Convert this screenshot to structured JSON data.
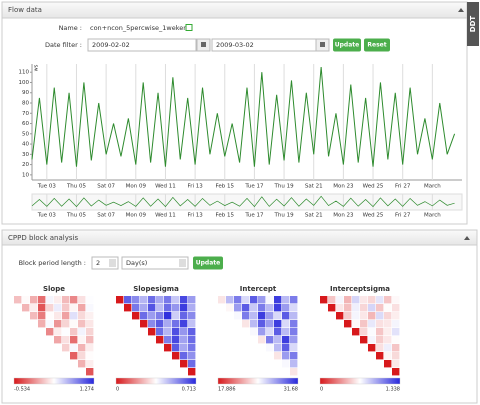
{
  "flow_panel": {
    "title": "Flow data",
    "name_label": "Name :",
    "name_value": "con+ncon_5percwise_1weken",
    "date_label": "Date filter :",
    "date_from": "2009-02-02",
    "date_to": "2009-03-02",
    "update": "Update",
    "reset": "Reset"
  },
  "side_tab": "DDT",
  "cppd_panel": {
    "title": "CPPD block analysis",
    "period_label": "Block period length :",
    "period_value": "2",
    "period_unit": "Day(s)",
    "update": "Update"
  },
  "chart_data": [
    {
      "type": "line",
      "y_label": "ws",
      "color": "#2e8b2e",
      "grid": true,
      "x": [
        2,
        2.5,
        3,
        3.5,
        4,
        4.5,
        5,
        5.5,
        6,
        6.5,
        7,
        7.5,
        8,
        8.5,
        9,
        9.5,
        10,
        10.5,
        11,
        11.5,
        12,
        12.5,
        13,
        13.5,
        14,
        14.5,
        15,
        15.5,
        16,
        16.5,
        17,
        17.5,
        18,
        18.5,
        19,
        19.5,
        20,
        20.5,
        21,
        21.5,
        22,
        22.5,
        23,
        23.5,
        24,
        24.5,
        25,
        25.5,
        26,
        26.5,
        27,
        27.5,
        28,
        28.5,
        29,
        29.5,
        30,
        30.5
      ],
      "series": [
        {
          "values": [
            25,
            85,
            20,
            95,
            22,
            90,
            18,
            100,
            24,
            80,
            30,
            60,
            28,
            65,
            20,
            100,
            22,
            90,
            18,
            105,
            25,
            85,
            20,
            95,
            30,
            70,
            28,
            60,
            22,
            95,
            18,
            110,
            20,
            88,
            24,
            102,
            22,
            90,
            30,
            115,
            28,
            70,
            20,
            98,
            22,
            85,
            18,
            100,
            25,
            90,
            20,
            95,
            30,
            65,
            25,
            80,
            30,
            50
          ]
        }
      ],
      "xlim": [
        2,
        31
      ],
      "ylim": [
        5,
        118
      ],
      "yticks": [
        10,
        20,
        30,
        40,
        50,
        60,
        70,
        80,
        90,
        100,
        110
      ],
      "xticks": [
        {
          "value": 3,
          "label": "Tue 03"
        },
        {
          "value": 5,
          "label": "Thu 05"
        },
        {
          "value": 7,
          "label": "Sat 07"
        },
        {
          "value": 9,
          "label": "Mon 09"
        },
        {
          "value": 11,
          "label": "Wed 11"
        },
        {
          "value": 13,
          "label": "Fri 13"
        },
        {
          "value": 15,
          "label": "Feb 15"
        },
        {
          "value": 17,
          "label": "Tue 17"
        },
        {
          "value": 19,
          "label": "Thu 19"
        },
        {
          "value": 21,
          "label": "Sat 21"
        },
        {
          "value": 23,
          "label": "Mon 23"
        },
        {
          "value": 25,
          "label": "Wed 25"
        },
        {
          "value": 27,
          "label": "Fri 27"
        },
        {
          "value": 29,
          "label": "March"
        }
      ]
    },
    {
      "type": "heatmap",
      "title": "Slope",
      "vlim": [
        -0.534,
        1.274
      ],
      "values": [
        [
          0.12,
          0.35,
          0.05,
          -0.2,
          0.41,
          0.3,
          0.1,
          -0.1,
          0.25,
          0.38
        ],
        [
          0.08,
          0.3,
          -0.3,
          0.2,
          0.45,
          0.15,
          0.33,
          0.02,
          0.4
        ],
        [
          0.1,
          -0.15,
          0.36,
          0.28,
          0.0,
          0.5,
          0.22,
          0.31
        ],
        [
          0.05,
          0.4,
          -0.05,
          0.2,
          0.35,
          0.12,
          0.27
        ],
        [
          -0.1,
          0.3,
          0.38,
          0.15,
          0.42,
          0.2
        ],
        [
          0.02,
          0.25,
          -0.2,
          0.33,
          0.1
        ],
        [
          0.18,
          0.4,
          0.07,
          0.3
        ],
        [
          -0.25,
          0.22,
          0.36
        ],
        [
          0.06,
          0.3
        ],
        [
          -0.3
        ]
      ]
    },
    {
      "type": "heatmap",
      "title": "Slopesigma",
      "vlim": [
        0,
        0.713
      ],
      "values": [
        [
          0,
          0.62,
          0.55,
          0.48,
          0.6,
          0.5,
          0.58,
          0.45,
          0.66,
          0.52
        ],
        [
          0,
          0.58,
          0.5,
          0.64,
          0.47,
          0.6,
          0.53,
          0.68,
          0.49
        ],
        [
          0,
          0.6,
          0.52,
          0.57,
          0.7,
          0.44,
          0.61,
          0.55
        ],
        [
          0,
          0.55,
          0.63,
          0.5,
          0.59,
          0.67,
          0.46
        ],
        [
          0,
          0.6,
          0.48,
          0.65,
          0.53,
          0.62
        ],
        [
          0,
          0.57,
          0.66,
          0.51,
          0.6
        ],
        [
          0,
          0.63,
          0.5,
          0.58
        ],
        [
          0,
          0.61,
          0.54
        ],
        [
          0,
          0.6
        ],
        [
          0
        ]
      ]
    },
    {
      "type": "heatmap",
      "title": "Intercept",
      "vlim": [
        17.886,
        31.68
      ],
      "values": [
        [
          24,
          27,
          29,
          26,
          30,
          28,
          25,
          31,
          27,
          29
        ],
        [
          24.5,
          28,
          30,
          26.5,
          29,
          27,
          31,
          28,
          26
        ],
        [
          25,
          29,
          27,
          31,
          28,
          26,
          30,
          27
        ],
        [
          24,
          27,
          30,
          28,
          31,
          26,
          29
        ],
        [
          25,
          28,
          26,
          30,
          27,
          29
        ],
        [
          24,
          29,
          27,
          31,
          28
        ],
        [
          25,
          27,
          30,
          26
        ],
        [
          24,
          28,
          29
        ],
        [
          25,
          27
        ],
        [
          24
        ]
      ]
    },
    {
      "type": "heatmap",
      "title": "Interceptsigma",
      "vlim": [
        0,
        1.338
      ],
      "values": [
        [
          0,
          0.5,
          0.7,
          0.45,
          0.8,
          0.6,
          0.55,
          0.75,
          0.5,
          0.65
        ],
        [
          0,
          0.6,
          0.48,
          0.72,
          0.55,
          0.8,
          0.5,
          0.66,
          0.58
        ],
        [
          0,
          0.52,
          0.7,
          0.6,
          0.46,
          0.78,
          0.55,
          0.62
        ],
        [
          0,
          0.65,
          0.5,
          0.74,
          0.58,
          0.6,
          0.7
        ],
        [
          0,
          0.55,
          0.68,
          0.5,
          0.62,
          0.76
        ],
        [
          0,
          0.7,
          0.52,
          0.6,
          0.66
        ],
        [
          0,
          0.58,
          0.72,
          0.5
        ],
        [
          0,
          0.64,
          0.56
        ],
        [
          0,
          0.6
        ],
        [
          0
        ]
      ]
    }
  ]
}
